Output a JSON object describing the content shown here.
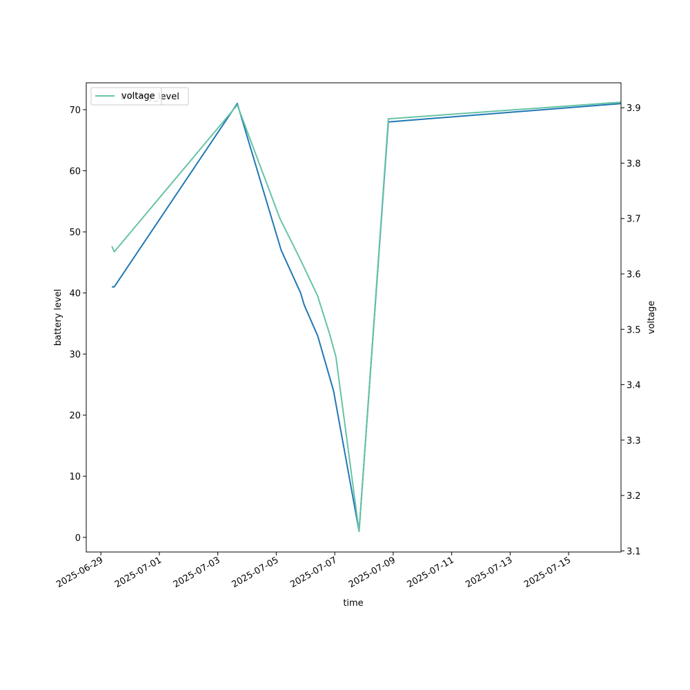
{
  "chart_data": {
    "type": "line",
    "xlabel": "time",
    "ylabel": "battery level",
    "ylabel_right": "voltage",
    "xlim": [
      "2025-06-28T12:00",
      "2025-07-16T19:00"
    ],
    "ylim": [
      -2.4,
      74.4
    ],
    "ylim_right": [
      3.098,
      3.945
    ],
    "x_ticks": [
      "2025-06-29",
      "2025-07-01",
      "2025-07-03",
      "2025-07-05",
      "2025-07-07",
      "2025-07-09",
      "2025-07-11",
      "2025-07-13",
      "2025-07-15"
    ],
    "y_ticks": [
      0,
      10,
      20,
      30,
      40,
      50,
      60,
      70
    ],
    "y_ticks_right": [
      3.1,
      3.2,
      3.3,
      3.4,
      3.5,
      3.6,
      3.7,
      3.8,
      3.9
    ],
    "legend": {
      "placement": "top-left",
      "entries": [
        "battery_level",
        "voltage"
      ]
    },
    "grid": false,
    "series": [
      {
        "name": "battery_level",
        "axis": "left",
        "color": "#1f77b4",
        "x": [
          "2025-06-29T09:00",
          "2025-06-29T11:00",
          "2025-07-03T16:00",
          "2025-07-05T04:00",
          "2025-07-05T20:00",
          "2025-07-05T23:00",
          "2025-07-06T10:00",
          "2025-07-06T23:00",
          "2025-07-07T20:00",
          "2025-07-08T20:00",
          "2025-07-16T19:00"
        ],
        "values": [
          41,
          41,
          71,
          47,
          40,
          38,
          33,
          24,
          1,
          68,
          71
        ]
      },
      {
        "name": "voltage",
        "axis": "right",
        "color": "#66c2a5",
        "x": [
          "2025-06-29T09:00",
          "2025-06-29T11:00",
          "2025-07-03T16:00",
          "2025-07-05T03:00",
          "2025-07-05T20:00",
          "2025-07-06T10:00",
          "2025-07-06T20:00",
          "2025-07-07T01:00",
          "2025-07-07T20:00",
          "2025-07-08T20:00",
          "2025-07-16T19:00"
        ],
        "values": [
          3.65,
          3.64,
          3.905,
          3.7,
          3.625,
          3.56,
          3.49,
          3.45,
          3.135,
          3.88,
          3.91
        ]
      }
    ]
  }
}
